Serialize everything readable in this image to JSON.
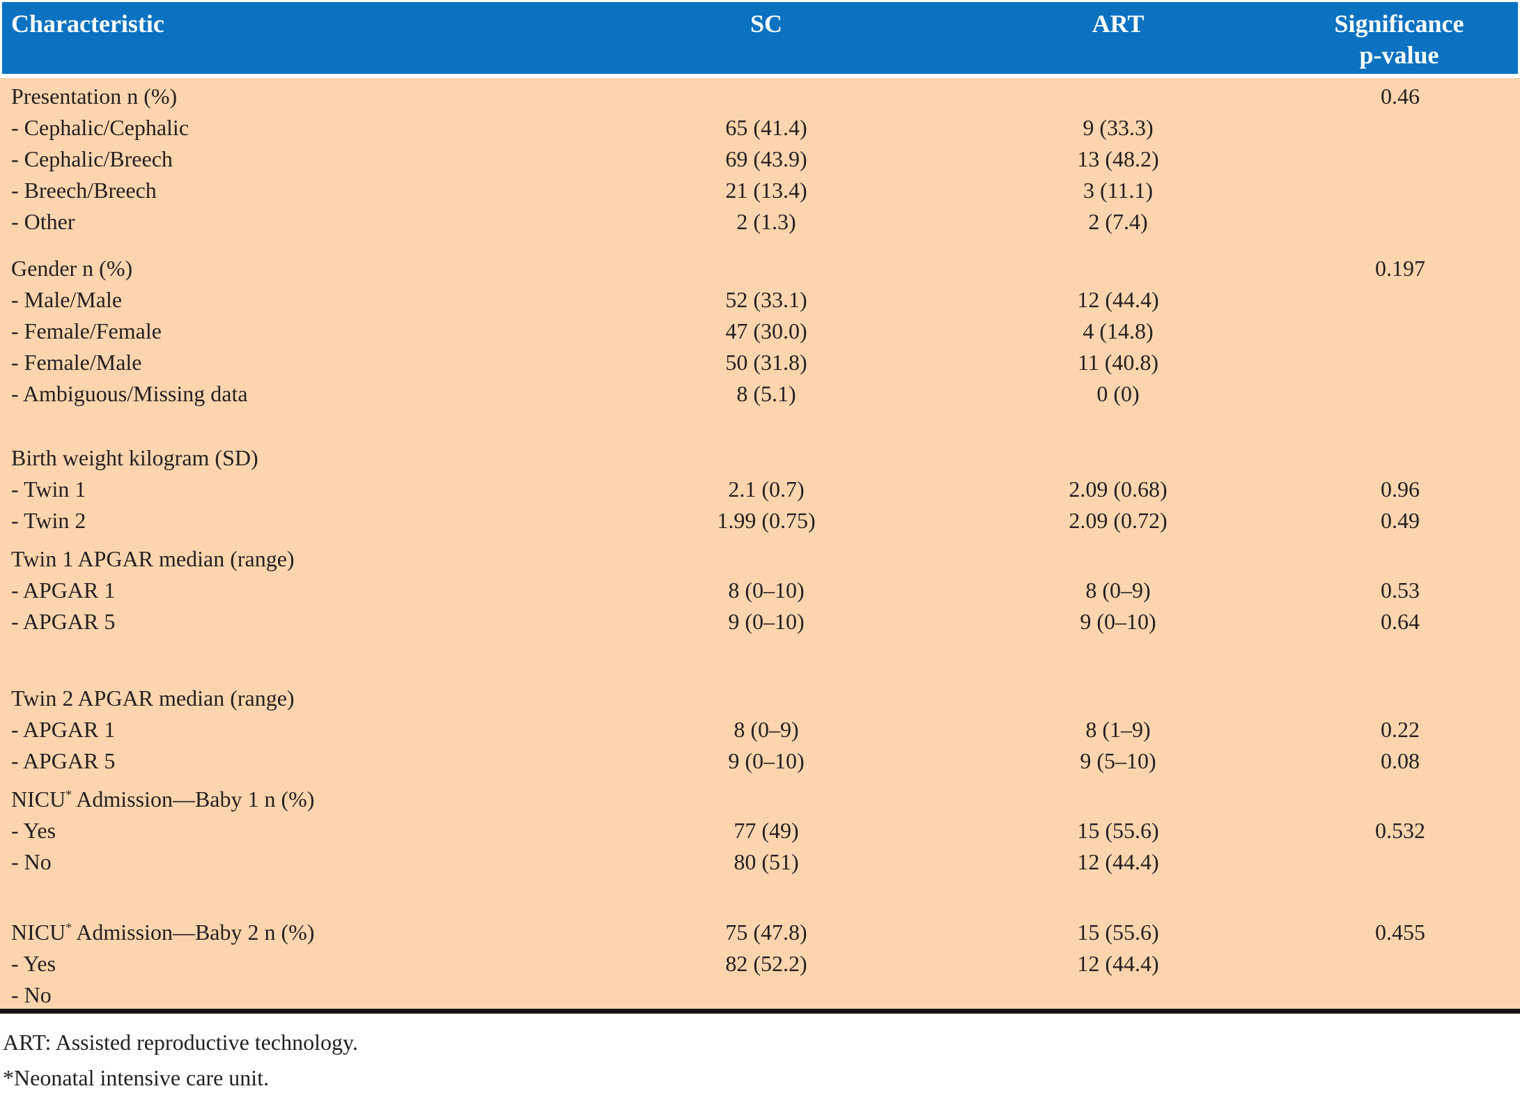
{
  "table": {
    "columns": {
      "characteristic": "Characteristic",
      "sc": "SC",
      "art": "ART",
      "significance_line1": "Significance",
      "significance_line2": "p-value"
    },
    "sections": [
      {
        "rows": [
          {
            "label": "Presentation n (%)",
            "sc": "",
            "art": "",
            "p": "0.46"
          },
          {
            "label": "- Cephalic/Cephalic",
            "sc": "65 (41.4)",
            "art": "9 (33.3)",
            "p": ""
          },
          {
            "label": "- Cephalic/Breech",
            "sc": "69 (43.9)",
            "art": "13 (48.2)",
            "p": ""
          },
          {
            "label": "- Breech/Breech",
            "sc": "21 (13.4)",
            "art": "3 (11.1)",
            "p": ""
          },
          {
            "label": "- Other",
            "sc": "2 (1.3)",
            "art": "2 (7.4)",
            "p": ""
          }
        ]
      },
      {
        "rows": [
          {
            "label": "Gender n (%)",
            "sc": "",
            "art": "",
            "p": "0.197"
          },
          {
            "label": "- Male/Male",
            "sc": "52 (33.1)",
            "art": "12 (44.4)",
            "p": ""
          },
          {
            "label": "- Female/Female",
            "sc": "47 (30.0)",
            "art": "4 (14.8)",
            "p": ""
          },
          {
            "label": "- Female/Male",
            "sc": "50 (31.8)",
            "art": "11 (40.8)",
            "p": ""
          },
          {
            "label": "- Ambiguous/Missing data",
            "sc": "8 (5.1)",
            "art": "0 (0)",
            "p": ""
          }
        ]
      },
      {
        "rows": [
          {
            "label": "Birth weight kilogram (SD)",
            "sc": "",
            "art": "",
            "p": ""
          },
          {
            "label": "- Twin 1",
            "sc": "2.1 (0.7)",
            "art": "2.09 (0.68)",
            "p": "0.96"
          },
          {
            "label": "- Twin 2",
            "sc": "1.99 (0.75)",
            "art": "2.09 (0.72)",
            "p": "0.49"
          }
        ]
      },
      {
        "rows": [
          {
            "label": "Twin 1 APGAR median (range)",
            "sc": "",
            "art": "",
            "p": ""
          },
          {
            "label": "- APGAR 1",
            "sc": "8 (0–10)",
            "art": "8 (0–9)",
            "p": "0.53"
          },
          {
            "label": "- APGAR 5",
            "sc": "9 (0–10)",
            "art": "9 (0–10)",
            "p": "0.64"
          }
        ]
      },
      {
        "rows": [
          {
            "label": "Twin 2 APGAR median (range)",
            "sc": "",
            "art": "",
            "p": ""
          },
          {
            "label": "- APGAR 1",
            "sc": "8 (0–9)",
            "art": "8 (1–9)",
            "p": "0.22"
          },
          {
            "label": "- APGAR 5",
            "sc": "9 (0–10)",
            "art": "9 (5–10)",
            "p": "0.08"
          }
        ]
      },
      {
        "rows": [
          {
            "label": "NICU",
            "label_sup": "*",
            "label_rest": " Admission—Baby 1 n (%)",
            "sc": "",
            "art": "",
            "p": ""
          },
          {
            "label": "- Yes",
            "sc": "77 (49)",
            "art": "15 (55.6)",
            "p": "0.532"
          },
          {
            "label": "- No",
            "sc": "80 (51)",
            "art": "12 (44.4)",
            "p": ""
          }
        ]
      },
      {
        "rows": [
          {
            "label": "NICU",
            "label_sup": "*",
            "label_rest": " Admission—Baby 2 n (%)",
            "sc": "75 (47.8)",
            "art": "15 (55.6)",
            "p": "0.455"
          },
          {
            "label": "- Yes",
            "sc": "82 (52.2)",
            "art": "12 (44.4)",
            "p": ""
          },
          {
            "label": "- No",
            "sc": "",
            "art": "",
            "p": ""
          }
        ]
      }
    ]
  },
  "footnotes": [
    "ART: Assisted reproductive technology.",
    "*Neonatal intensive care unit."
  ],
  "colors": {
    "header_bg": "#0a72c1",
    "header_text": "#ffffff",
    "body_bg": "#fcd5ae",
    "text": "#231f20",
    "bottom_rule": "#171314"
  }
}
